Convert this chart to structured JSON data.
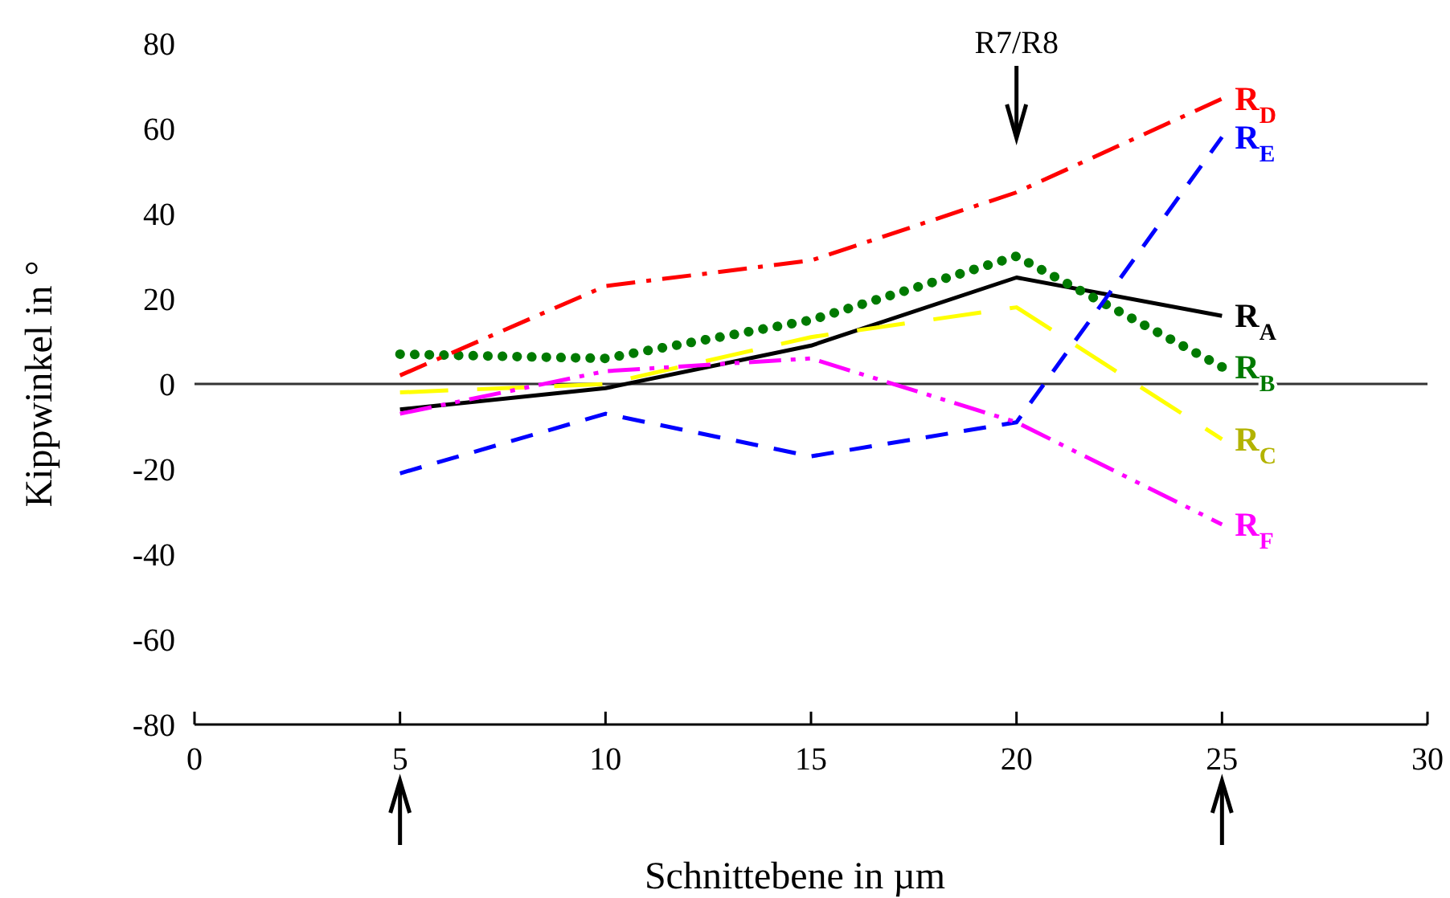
{
  "chart_data": {
    "type": "line",
    "xlabel": "Schnittebene in µm",
    "ylabel": "Kippwinkel in °",
    "x": [
      5,
      10,
      15,
      20,
      25
    ],
    "series": [
      {
        "name": "R$_{A}$",
        "color": "#000000",
        "line_style": "solid",
        "values": [
          -6,
          -1,
          9,
          25,
          16
        ]
      },
      {
        "name": "R$_{B}$",
        "color": "#007a00",
        "line_style": "dotted",
        "values": [
          7,
          6,
          15,
          30,
          4
        ]
      },
      {
        "name": "R$_{C}$",
        "color": "#ffff00",
        "line_style": "dashed",
        "values": [
          -2,
          0,
          11,
          18,
          -13
        ]
      },
      {
        "name": "R$_{D}$",
        "color": "#ff0000",
        "line_style": "dashed",
        "values": [
          2,
          23,
          29,
          45,
          67
        ]
      },
      {
        "name": "R$_{E}$",
        "color": "#0000ff",
        "line_style": "dashed",
        "values": [
          -21,
          -7,
          -17,
          -9,
          58
        ]
      },
      {
        "name": "R$_{F}$",
        "color": "#ff00ff",
        "line_style": "dashed",
        "values": [
          -7,
          3,
          6,
          -9,
          -33
        ]
      }
    ],
    "xlim": [
      0,
      30
    ],
    "xticks": [
      0,
      5,
      10,
      15,
      20,
      25,
      30
    ],
    "ylim": [
      -80,
      80
    ],
    "yticks": [
      -80,
      -60,
      -40,
      -20,
      0,
      20,
      40,
      60,
      80
    ],
    "ref_lines": [
      {
        "axis": "y",
        "value": 0,
        "color": "#333333"
      }
    ],
    "annotations": [
      "R7/R8"
    ],
    "grid": false,
    "legend": false,
    "marker": "none"
  }
}
